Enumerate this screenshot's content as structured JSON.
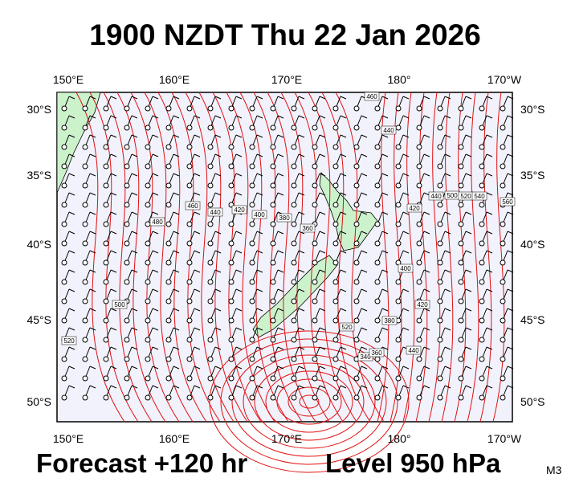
{
  "title": "1900 NZDT Thu 22 Jan 2026",
  "lon_labels": [
    "150°E",
    "160°E",
    "170°E",
    "180°",
    "170°W"
  ],
  "lat_labels": [
    "30°S",
    "35°S",
    "40°S",
    "45°S",
    "50°S"
  ],
  "contour_labels": [
    "460",
    "440",
    "480",
    "460",
    "440",
    "420",
    "400",
    "380",
    "360",
    "420",
    "440",
    "500",
    "520",
    "540",
    "560",
    "400",
    "420",
    "380",
    "440",
    "340",
    "360",
    "500",
    "520",
    "520"
  ],
  "footer": {
    "forecast": "Forecast +120 hr",
    "level": "Level 950 hPa",
    "model": "M3"
  }
}
